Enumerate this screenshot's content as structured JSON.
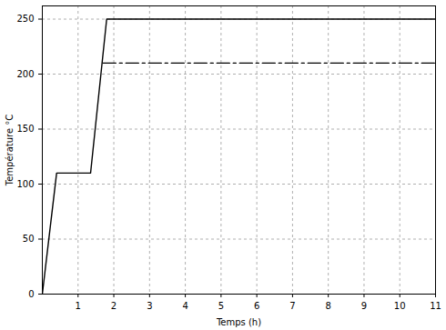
{
  "chart_data": {
    "type": "line",
    "xlabel": "Temps (h)",
    "ylabel": "Température °C",
    "series": [
      {
        "x": [
          0,
          0.4,
          1.35,
          1.8,
          11
        ],
        "values": [
          0,
          110,
          110,
          250,
          250
        ],
        "color": "#000000",
        "line_style": "solid"
      },
      {
        "x": [
          1.7,
          11
        ],
        "values": [
          210,
          210
        ],
        "color": "#000000",
        "line_style": "dashdot"
      }
    ],
    "xlim": [
      0,
      11
    ],
    "xticks": [
      1,
      2,
      3,
      4,
      5,
      6,
      7,
      8,
      9,
      10,
      11
    ],
    "ylim": [
      0,
      262
    ],
    "yticks": [
      0,
      50,
      100,
      150,
      200,
      250
    ],
    "grid": true
  }
}
